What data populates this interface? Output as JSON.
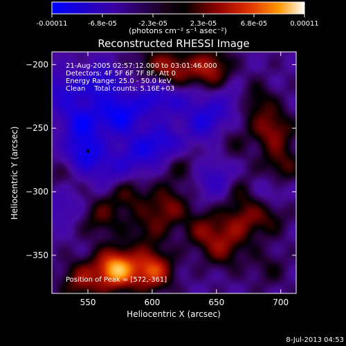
{
  "chart_data": {
    "type": "heatmap",
    "title": "Reconstructed RHESSI Image",
    "xlabel": "Heliocentric X (arcsec)",
    "ylabel": "Heliocentric Y (arcsec)",
    "xlim": [
      522,
      712
    ],
    "ylim": [
      -380,
      -190
    ],
    "x_ticks": [
      550,
      600,
      650,
      700
    ],
    "y_ticks": [
      -200,
      -250,
      -300,
      -350
    ],
    "colorbar": {
      "units": "(photons cm⁻² s⁻¹ asec⁻²)",
      "range": [
        -0.00011,
        0.00011
      ],
      "tick_labels": [
        "-0.00011",
        "-6.8e-05",
        "-2.3e-05",
        "2.3e-05",
        "6.8e-05",
        "0.00011"
      ],
      "colors": [
        "#0000ff",
        "#3a00a0",
        "#1a0018",
        "#000000",
        "#8a0000",
        "#e03000",
        "#ff9a00",
        "#ffffff"
      ]
    },
    "annotations": [
      "21-Aug-2005 02:57:12.000 to 03:01:46.000",
      "Detectors: 4F 5F 6F 7F 8F, Att 0",
      "Energy Range: 25.0 - 50.0 keV",
      "Clean    Total counts: 5.16E+03"
    ],
    "peak_label": "Position of Peak = [572,-361]",
    "peak": [
      572,
      -361
    ],
    "sources": [
      {
        "x": 572,
        "y": -361,
        "value": 0.00011
      },
      {
        "x": 600,
        "y": -362,
        "value": 8e-05
      },
      {
        "x": 645,
        "y": -203,
        "value": 6e-05
      },
      {
        "x": 618,
        "y": -205,
        "value": 5e-05
      },
      {
        "x": 694,
        "y": -252,
        "value": 5e-05
      },
      {
        "x": 700,
        "y": -280,
        "value": 4e-05
      },
      {
        "x": 580,
        "y": -300,
        "value": 4e-05
      },
      {
        "x": 612,
        "y": -312,
        "value": 4.5e-05
      },
      {
        "x": 640,
        "y": -330,
        "value": 4e-05
      },
      {
        "x": 668,
        "y": -325,
        "value": 4e-05
      },
      {
        "x": 690,
        "y": -318,
        "value": 3.5e-05
      },
      {
        "x": 596,
        "y": -330,
        "value": 3e-05
      },
      {
        "x": 560,
        "y": -320,
        "value": 3.5e-05
      },
      {
        "x": 655,
        "y": -345,
        "value": 4e-05
      },
      {
        "x": 690,
        "y": -360,
        "value": 2e-05
      },
      {
        "x": 670,
        "y": -300,
        "value": 3e-05
      },
      {
        "x": 680,
        "y": -230,
        "value": 3.5e-05
      },
      {
        "x": 620,
        "y": -245,
        "value": 2.5e-05
      },
      {
        "x": 530,
        "y": -290,
        "value": 2e-05
      },
      {
        "x": 620,
        "y": -280,
        "value": 2.5e-05
      },
      {
        "x": 545,
        "y": -370,
        "value": 5e-05
      },
      {
        "x": 600,
        "y": -200,
        "value": 3e-05
      },
      {
        "x": 660,
        "y": -260,
        "value": 2e-05
      },
      {
        "x": 560,
        "y": -215,
        "value": -6e-05
      },
      {
        "x": 545,
        "y": -245,
        "value": -7e-05
      },
      {
        "x": 575,
        "y": -240,
        "value": -8e-05
      },
      {
        "x": 600,
        "y": -225,
        "value": -5e-05
      },
      {
        "x": 640,
        "y": -245,
        "value": -6e-05
      },
      {
        "x": 548,
        "y": -270,
        "value": -7e-05
      },
      {
        "x": 590,
        "y": -270,
        "value": -5e-05
      },
      {
        "x": 610,
        "y": -260,
        "value": -6e-05
      },
      {
        "x": 530,
        "y": -220,
        "value": -5e-05
      },
      {
        "x": 650,
        "y": -290,
        "value": -4e-05
      },
      {
        "x": 690,
        "y": -300,
        "value": -3e-05
      },
      {
        "x": 530,
        "y": -310,
        "value": -3e-05
      },
      {
        "x": 620,
        "y": -230,
        "value": -4e-05
      },
      {
        "x": 660,
        "y": -230,
        "value": -3e-05
      },
      {
        "x": 570,
        "y": -285,
        "value": -4e-05
      }
    ]
  },
  "footer_date": "8-Jul-2013 04:53"
}
